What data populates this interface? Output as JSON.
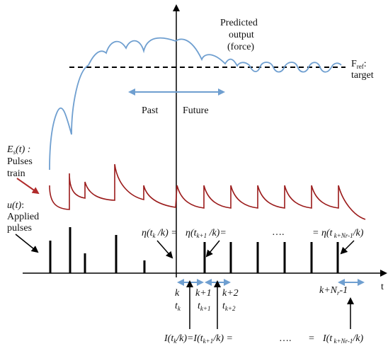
{
  "labels": {
    "predicted_l1": "Predicted",
    "predicted_l2": "output",
    "predicted_l3": "(force)",
    "fref": "F",
    "fref_sub": "ref",
    "fref_colon": ":",
    "target": "target",
    "past": "Past",
    "future": "Future",
    "es": "E",
    "es_sub": "s",
    "es_arg": "(t) :",
    "pulses_l1": "Pulses",
    "pulses_l2": "train",
    "u": "u(t)",
    "u_colon": ":",
    "applied_l1": "Applied",
    "applied_l2": "pulses",
    "eta1": "η(t",
    "eta1_sub": "k",
    "eta1_end": " /k) =",
    "eta2": "η(t",
    "eta2_sub": "k+1",
    "eta2_end": " /k)=",
    "dots1": "….",
    "eta3": "= η(t",
    "eta3_sub": " k+Nr-1",
    "eta3_end": "/k)",
    "t_axis": "t",
    "k": "k",
    "tk": "t",
    "tk_sub": "k",
    "k1": "k+1",
    "tk1": "t",
    "tk1_sub": "k+1",
    "k2": "k+2",
    "tk2": "t",
    "tk2_sub": "k+2",
    "knr": "k+N",
    "knr_sub": "r",
    "knr_end": "-1",
    "i_left": "I(t",
    "i_left_sub": "k",
    "i_left_end": "/k)=I(t",
    "i_left_sub2": "k+1",
    "i_left_end2": "/k) =",
    "dots2": "….",
    "i_right_eq": "=",
    "i_right": "I(t",
    "i_right_sub": " k+Nr-1",
    "i_right_end": "/k)"
  },
  "colors": {
    "predicted_curve": "#6f9fd0",
    "pulse_train": "#9b1b1b",
    "arrow_blue": "#6f9fd0",
    "arrow_red": "#b02a2a",
    "ink": "#000000"
  }
}
